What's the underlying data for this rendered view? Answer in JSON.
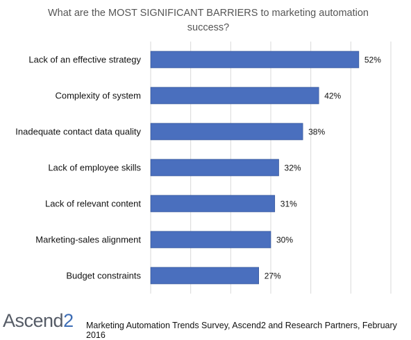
{
  "chart_data": {
    "type": "bar",
    "orientation": "horizontal",
    "title": "What are the MOST SIGNIFICANT  BARRIERS to marketing automation success?",
    "categories": [
      "Lack of an effective strategy",
      "Complexity of system",
      "Inadequate contact data quality",
      "Lack of employee skills",
      "Lack of relevant content",
      "Marketing-sales alignment",
      "Budget constraints"
    ],
    "values": [
      52,
      42,
      38,
      32,
      31,
      30,
      27
    ],
    "value_labels": [
      "52%",
      "42%",
      "38%",
      "32%",
      "31%",
      "30%",
      "27%"
    ],
    "xlim": [
      0,
      60
    ],
    "grid": true,
    "bar_color": "#4a6fbe"
  },
  "footer": {
    "logo_main": "Ascend",
    "logo_accent": "2",
    "source": "Marketing Automation Trends Survey, Ascend2 and Research Partners, February 2016"
  }
}
